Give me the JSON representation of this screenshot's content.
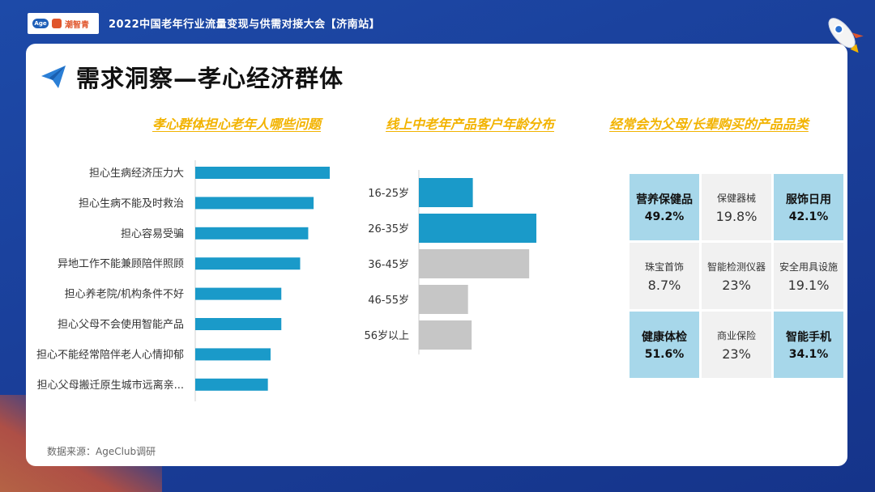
{
  "header": {
    "event_title": "2022中国老年行业流量变现与供需对接大会【济南站】",
    "logo_text": "潮智青"
  },
  "page": {
    "title": "需求洞察—孝心经济群体",
    "source": "数据来源：AgeClub调研"
  },
  "colors": {
    "primary_bar": "#1a9ac9",
    "gray_bar": "#c6c6c6",
    "highlight": "#a7d7ea",
    "accent": "#f2b300"
  },
  "chart_data": [
    {
      "type": "bar",
      "orientation": "horizontal",
      "title": "孝心群体担心老年人哪些问题",
      "categories": [
        "担心生病经济压力大",
        "担心生病不能及时救治",
        "担心容易受骗",
        "异地工作不能兼顾陪伴照顾",
        "担心养老院/机构条件不好",
        "担心父母不会使用智能产品",
        "担心不能经常陪伴老人心情抑郁",
        "担心父母搬迁原生城市远离亲..."
      ],
      "values": [
        100,
        88,
        84,
        78,
        64,
        64,
        56,
        54
      ]
    },
    {
      "type": "bar",
      "orientation": "horizontal",
      "title": "线上中老年产品客户年龄分布",
      "categories": [
        "16-25岁",
        "26-35岁",
        "36-45岁",
        "46-55岁",
        "56岁以上"
      ],
      "values": [
        45,
        98,
        92,
        41,
        44
      ],
      "highlight": [
        true,
        true,
        false,
        false,
        false
      ]
    },
    {
      "type": "table",
      "title": "经常会为父母/长辈购买的产品品类",
      "cells": [
        {
          "name": "营养保健品",
          "pct": "49.2%",
          "hl": true
        },
        {
          "name": "保健器械",
          "pct": "19.8%",
          "hl": false
        },
        {
          "name": "服饰日用",
          "pct": "42.1%",
          "hl": true
        },
        {
          "name": "珠宝首饰",
          "pct": "8.7%",
          "hl": false
        },
        {
          "name": "智能检测仪器",
          "pct": "23%",
          "hl": false
        },
        {
          "name": "安全用具设施",
          "pct": "19.1%",
          "hl": false
        },
        {
          "name": "健康体检",
          "pct": "51.6%",
          "hl": true
        },
        {
          "name": "商业保险",
          "pct": "23%",
          "hl": false
        },
        {
          "name": "智能手机",
          "pct": "34.1%",
          "hl": true
        }
      ]
    }
  ]
}
